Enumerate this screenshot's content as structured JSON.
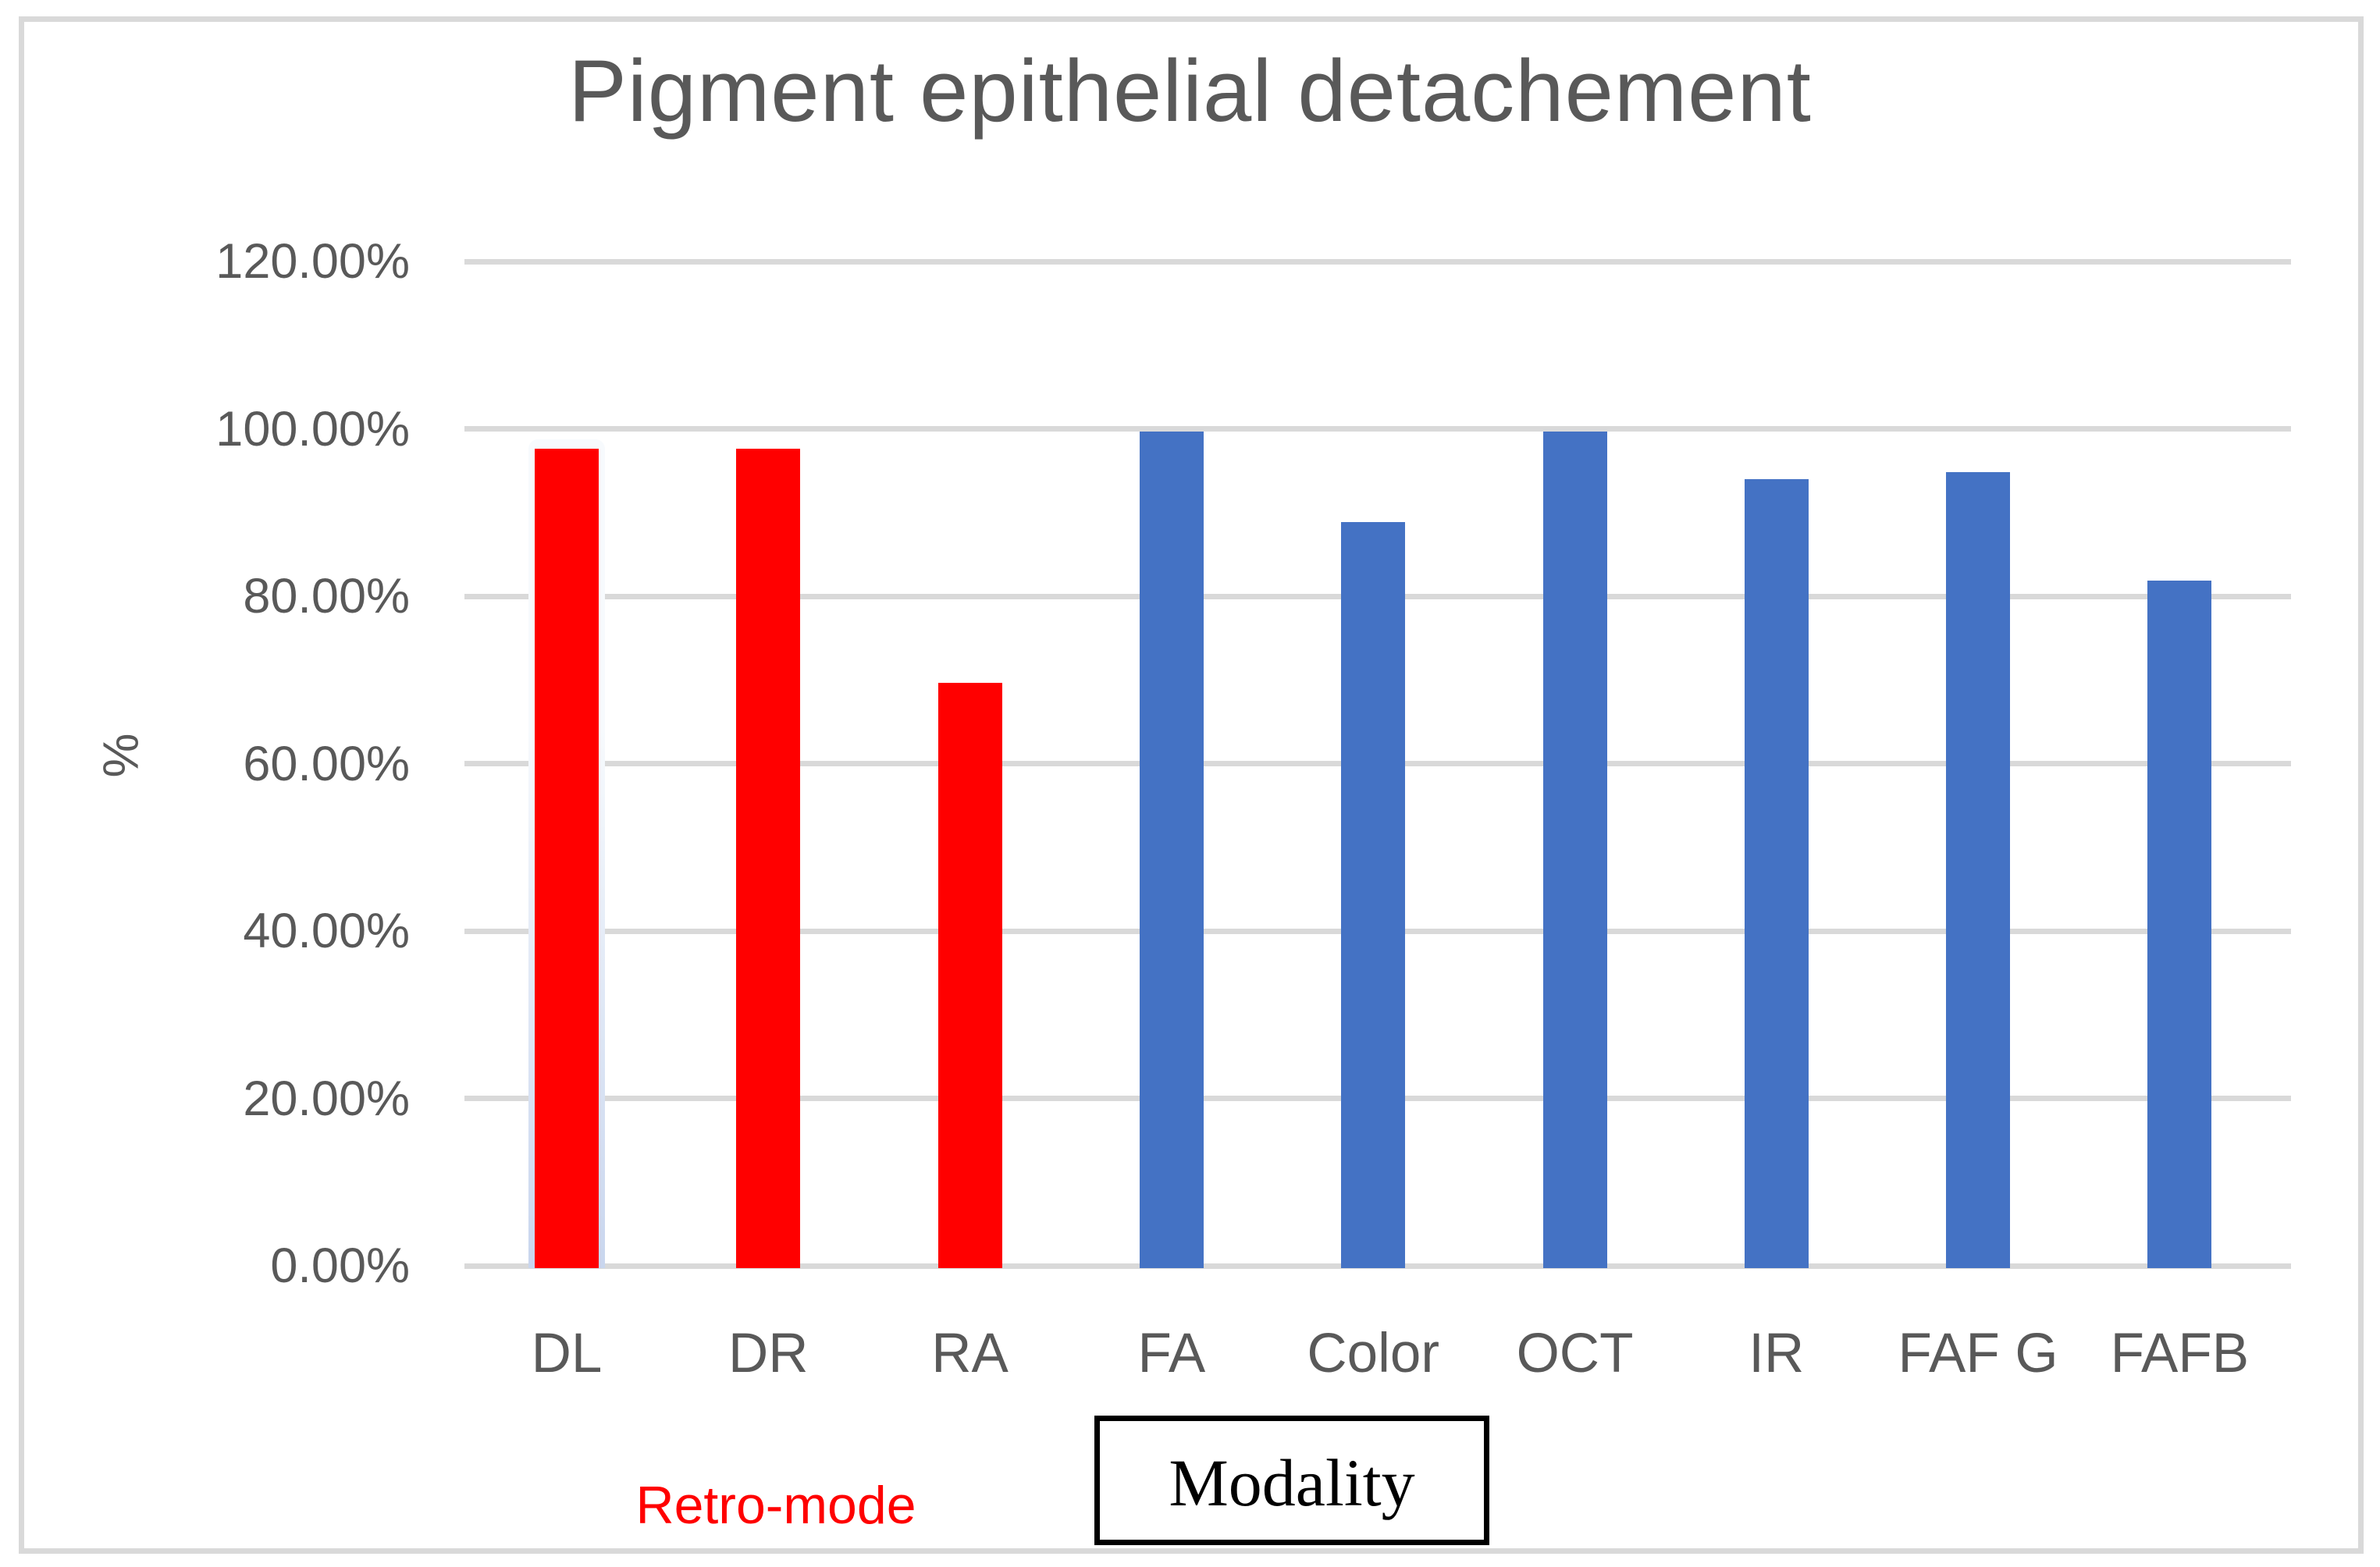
{
  "figure": {
    "background": "#ffffff",
    "border_color": "#d9d9d9"
  },
  "chart_data": {
    "type": "bar",
    "title": "Pigment epithelial detachement",
    "xlabel": "",
    "ylabel": "%",
    "ylim": [
      0,
      120
    ],
    "grid": true,
    "legend_position": "none",
    "gridline_color": "#d9d9d9",
    "tick_text_color": "#595959",
    "categories": [
      "DL",
      "DR",
      "RA",
      "FA",
      "Color",
      "OCT",
      "IR",
      "FAF G",
      "FAFB"
    ],
    "values": [
      97.9,
      97.9,
      69.9,
      100.0,
      89.1,
      100.0,
      94.3,
      95.1,
      82.1
    ],
    "bar_colors": [
      "#ff0000",
      "#ff0000",
      "#ff0000",
      "#4472c4",
      "#4472c4",
      "#4472c4",
      "#4472c4",
      "#4472c4",
      "#4472c4"
    ],
    "groups": [
      {
        "name": "Retro-mode",
        "categories": [
          "DL",
          "DR",
          "RA"
        ],
        "color": "#ff0000"
      },
      {
        "name": "Modality",
        "categories": [
          "FA",
          "Color",
          "OCT",
          "IR",
          "FAF G",
          "FAFB"
        ],
        "color": "#4472c4"
      }
    ],
    "yticks": [
      {
        "value": 120,
        "label": "120.00%"
      },
      {
        "value": 100,
        "label": "100.00%"
      },
      {
        "value": 80,
        "label": "80.00%"
      },
      {
        "value": 60,
        "label": "60.00%"
      },
      {
        "value": 40,
        "label": "40.00%"
      },
      {
        "value": 20,
        "label": "20.00%"
      },
      {
        "value": 0,
        "label": "0.00%"
      }
    ],
    "highlight": {
      "category": "DL",
      "halo_color_top": "#f7fafd",
      "halo_color_bottom": "#c9d6ee"
    },
    "annotations": {
      "retro_label": {
        "text": "Retro-mode",
        "color": "#ff0000"
      },
      "modality_box": {
        "text": "Modality",
        "border_color": "#000000"
      }
    }
  }
}
